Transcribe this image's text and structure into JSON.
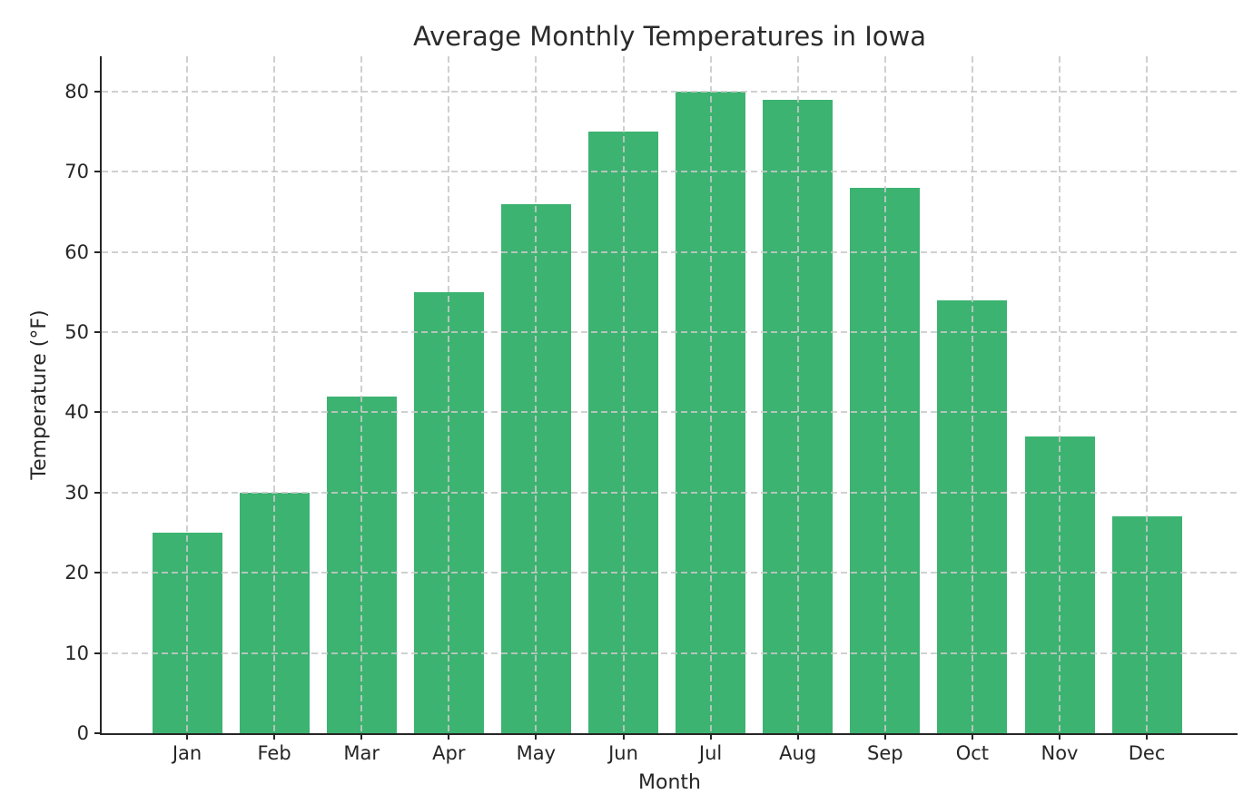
{
  "chart_data": {
    "type": "bar",
    "title": "Average Monthly Temperatures in Iowa",
    "xlabel": "Month",
    "ylabel": "Temperature (°F)",
    "categories": [
      "Jan",
      "Feb",
      "Mar",
      "Apr",
      "May",
      "Jun",
      "Jul",
      "Aug",
      "Sep",
      "Oct",
      "Nov",
      "Dec"
    ],
    "values": [
      25,
      30,
      42,
      55,
      66,
      75,
      80,
      79,
      68,
      54,
      37,
      27
    ],
    "yticks": [
      0,
      10,
      20,
      30,
      40,
      50,
      60,
      70,
      80
    ],
    "ylim": [
      0,
      84.4
    ],
    "grid": true,
    "grid_style": "dashed",
    "legend": "none",
    "bar_color": "#3CB371",
    "grid_color": "#c8c8c8",
    "axis_color": "#262626",
    "background_color": "#ffffff"
  }
}
